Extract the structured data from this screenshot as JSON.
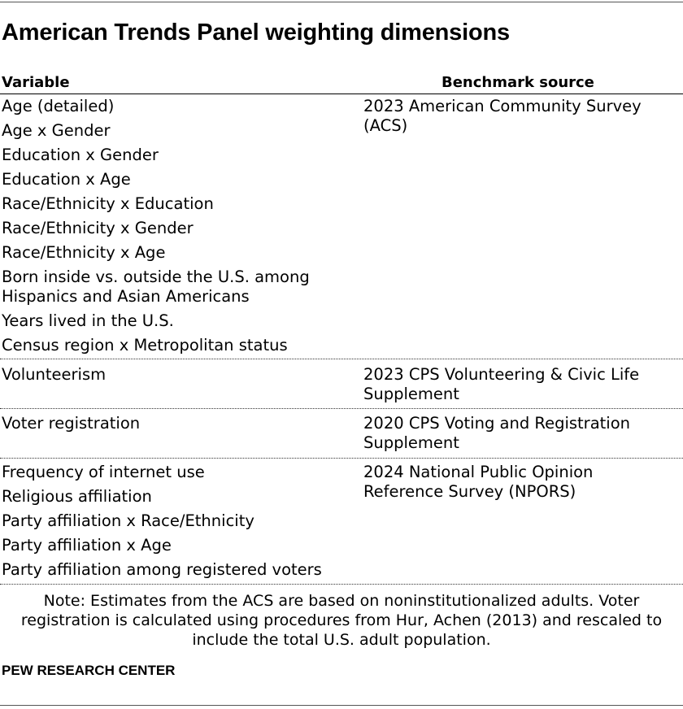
{
  "title": "American Trends Panel weighting dimensions",
  "columns": {
    "variable": "Variable",
    "source": "Benchmark source"
  },
  "groups": [
    {
      "variables": [
        "Age (detailed)",
        "Age x Gender",
        "Education x Gender",
        "Education x Age",
        "Race/Ethnicity x Education",
        "Race/Ethnicity x Gender",
        "Race/Ethnicity x Age",
        "Born inside vs. outside the U.S. among Hispanics and Asian Americans",
        "Years lived in the U.S.",
        "Census region x Metropolitan status"
      ],
      "source": "2023 American Community Survey (ACS)"
    },
    {
      "variables": [
        "Volunteerism"
      ],
      "source": "2023 CPS Volunteering & Civic Life Supplement"
    },
    {
      "variables": [
        "Voter registration"
      ],
      "source": "2020 CPS Voting and Registration Supplement"
    },
    {
      "variables": [
        "Frequency of internet use",
        "Religious affiliation",
        "Party affiliation x Race/Ethnicity",
        "Party affiliation x Age",
        "Party affiliation among registered voters"
      ],
      "source": "2024 National Public Opinion Reference Survey (NPORS)"
    }
  ],
  "note": "Note: Estimates from the ACS are based on noninstitutionalized adults. Voter registration is calculated using procedures from Hur, Achen (2013) and rescaled to include the total U.S. adult population.",
  "footer": "PEW RESEARCH CENTER"
}
